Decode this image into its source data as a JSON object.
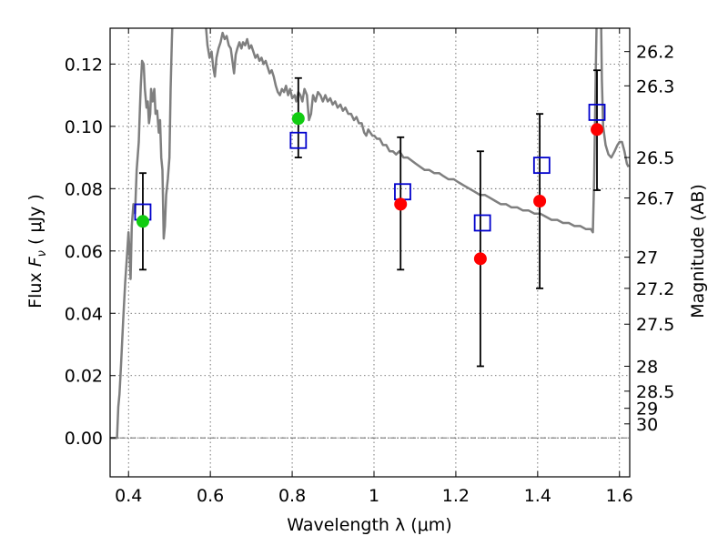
{
  "chart_data": {
    "type": "scatter",
    "xlabel": "Wavelength  λ (μm)",
    "ylabel": "Flux  F_ν  ( μJy )",
    "ylabel_parts": {
      "pre": "Flux  ",
      "symbol": "F",
      "subscript": "ν",
      "post": "  ( μJy )"
    },
    "y2label": "Magnitude (AB)",
    "xlim": [
      0.355,
      1.625
    ],
    "ylim": [
      -0.0125,
      0.1315
    ],
    "grid": true,
    "xticks": [
      {
        "value": 0.4,
        "label": "0.4"
      },
      {
        "value": 0.6,
        "label": "0.6"
      },
      {
        "value": 0.8,
        "label": "0.8"
      },
      {
        "value": 1.0,
        "label": "1"
      },
      {
        "value": 1.2,
        "label": "1.2"
      },
      {
        "value": 1.4,
        "label": "1.4"
      },
      {
        "value": 1.6,
        "label": "1.6"
      }
    ],
    "yticks": [
      {
        "value": 0.0,
        "label": "0.00"
      },
      {
        "value": 0.02,
        "label": "0.02"
      },
      {
        "value": 0.04,
        "label": "0.04"
      },
      {
        "value": 0.06,
        "label": "0.06"
      },
      {
        "value": 0.08,
        "label": "0.08"
      },
      {
        "value": 0.1,
        "label": "0.10"
      },
      {
        "value": 0.12,
        "label": "0.12"
      }
    ],
    "magticks": [
      {
        "value": 0.124,
        "label": "26.2"
      },
      {
        "value": 0.113,
        "label": "26.3"
      },
      {
        "value": 0.09,
        "label": "26.5"
      },
      {
        "value": 0.077,
        "label": "26.7"
      },
      {
        "value": 0.058,
        "label": "27"
      },
      {
        "value": 0.048,
        "label": "27.2"
      },
      {
        "value": 0.0365,
        "label": "27.5"
      },
      {
        "value": 0.023,
        "label": "28"
      },
      {
        "value": 0.015,
        "label": "28.5"
      },
      {
        "value": 0.0095,
        "label": "29"
      },
      {
        "value": 0.0045,
        "label": "30"
      }
    ],
    "model_spectrum": {
      "color": "#7f7f7f",
      "points": [
        [
          0.355,
          0.0
        ],
        [
          0.37,
          0.0
        ],
        [
          0.372,
          0.0
        ],
        [
          0.375,
          0.01
        ],
        [
          0.378,
          0.014
        ],
        [
          0.382,
          0.024
        ],
        [
          0.387,
          0.038
        ],
        [
          0.392,
          0.05
        ],
        [
          0.397,
          0.06
        ],
        [
          0.4,
          0.066
        ],
        [
          0.403,
          0.058
        ],
        [
          0.405,
          0.051
        ],
        [
          0.408,
          0.068
        ],
        [
          0.412,
          0.075
        ],
        [
          0.416,
          0.072
        ],
        [
          0.42,
          0.086
        ],
        [
          0.425,
          0.095
        ],
        [
          0.428,
          0.106
        ],
        [
          0.43,
          0.113
        ],
        [
          0.433,
          0.121
        ],
        [
          0.437,
          0.12
        ],
        [
          0.44,
          0.112
        ],
        [
          0.444,
          0.106
        ],
        [
          0.447,
          0.108
        ],
        [
          0.45,
          0.101
        ],
        [
          0.453,
          0.104
        ],
        [
          0.455,
          0.112
        ],
        [
          0.459,
          0.108
        ],
        [
          0.463,
          0.112
        ],
        [
          0.466,
          0.104
        ],
        [
          0.47,
          0.105
        ],
        [
          0.474,
          0.098
        ],
        [
          0.477,
          0.102
        ],
        [
          0.48,
          0.09
        ],
        [
          0.483,
          0.086
        ],
        [
          0.486,
          0.064
        ],
        [
          0.489,
          0.068
        ],
        [
          0.492,
          0.078
        ],
        [
          0.496,
          0.083
        ],
        [
          0.5,
          0.09
        ],
        [
          0.503,
          0.112
        ],
        [
          0.506,
          0.128
        ],
        [
          0.509,
          0.14
        ],
        [
          0.515,
          0.14
        ],
        [
          0.52,
          0.14
        ],
        [
          0.528,
          0.135
        ],
        [
          0.536,
          0.14
        ],
        [
          0.545,
          0.137
        ],
        [
          0.553,
          0.141
        ],
        [
          0.56,
          0.136
        ],
        [
          0.568,
          0.132
        ],
        [
          0.575,
          0.14
        ],
        [
          0.58,
          0.134
        ],
        [
          0.586,
          0.137
        ],
        [
          0.593,
          0.126
        ],
        [
          0.598,
          0.122
        ],
        [
          0.603,
          0.124
        ],
        [
          0.607,
          0.119
        ],
        [
          0.611,
          0.116
        ],
        [
          0.615,
          0.122
        ],
        [
          0.62,
          0.125
        ],
        [
          0.625,
          0.127
        ],
        [
          0.63,
          0.13
        ],
        [
          0.635,
          0.128
        ],
        [
          0.64,
          0.129
        ],
        [
          0.645,
          0.126
        ],
        [
          0.65,
          0.125
        ],
        [
          0.654,
          0.121
        ],
        [
          0.658,
          0.117
        ],
        [
          0.662,
          0.123
        ],
        [
          0.666,
          0.125
        ],
        [
          0.671,
          0.127
        ],
        [
          0.676,
          0.125
        ],
        [
          0.68,
          0.127
        ],
        [
          0.685,
          0.126
        ],
        [
          0.69,
          0.128
        ],
        [
          0.695,
          0.125
        ],
        [
          0.7,
          0.126
        ],
        [
          0.705,
          0.124
        ],
        [
          0.71,
          0.122
        ],
        [
          0.715,
          0.123
        ],
        [
          0.72,
          0.121
        ],
        [
          0.725,
          0.122
        ],
        [
          0.73,
          0.12
        ],
        [
          0.735,
          0.121
        ],
        [
          0.74,
          0.119
        ],
        [
          0.745,
          0.117
        ],
        [
          0.75,
          0.118
        ],
        [
          0.755,
          0.116
        ],
        [
          0.76,
          0.113
        ],
        [
          0.765,
          0.111
        ],
        [
          0.77,
          0.11
        ],
        [
          0.775,
          0.112
        ],
        [
          0.78,
          0.111
        ],
        [
          0.785,
          0.113
        ],
        [
          0.79,
          0.11
        ],
        [
          0.795,
          0.112
        ],
        [
          0.8,
          0.109
        ],
        [
          0.806,
          0.11
        ],
        [
          0.81,
          0.108
        ],
        [
          0.815,
          0.111
        ],
        [
          0.82,
          0.11
        ],
        [
          0.825,
          0.108
        ],
        [
          0.83,
          0.112
        ],
        [
          0.836,
          0.11
        ],
        [
          0.841,
          0.102
        ],
        [
          0.846,
          0.104
        ],
        [
          0.851,
          0.11
        ],
        [
          0.857,
          0.108
        ],
        [
          0.863,
          0.111
        ],
        [
          0.869,
          0.11
        ],
        [
          0.875,
          0.108
        ],
        [
          0.881,
          0.11
        ],
        [
          0.887,
          0.108
        ],
        [
          0.893,
          0.109
        ],
        [
          0.899,
          0.107
        ],
        [
          0.905,
          0.108
        ],
        [
          0.911,
          0.106
        ],
        [
          0.918,
          0.107
        ],
        [
          0.924,
          0.105
        ],
        [
          0.93,
          0.106
        ],
        [
          0.937,
          0.104
        ],
        [
          0.944,
          0.104
        ],
        [
          0.951,
          0.102
        ],
        [
          0.957,
          0.103
        ],
        [
          0.963,
          0.101
        ],
        [
          0.97,
          0.101
        ],
        [
          0.976,
          0.098
        ],
        [
          0.981,
          0.097
        ],
        [
          0.986,
          0.099
        ],
        [
          0.991,
          0.098
        ],
        [
          0.996,
          0.097
        ],
        [
          1.001,
          0.097
        ],
        [
          1.007,
          0.096
        ],
        [
          1.014,
          0.096
        ],
        [
          1.022,
          0.094
        ],
        [
          1.03,
          0.094
        ],
        [
          1.038,
          0.092
        ],
        [
          1.046,
          0.092
        ],
        [
          1.054,
          0.091
        ],
        [
          1.062,
          0.092
        ],
        [
          1.072,
          0.09
        ],
        [
          1.082,
          0.09
        ],
        [
          1.092,
          0.089
        ],
        [
          1.102,
          0.088
        ],
        [
          1.113,
          0.087
        ],
        [
          1.124,
          0.086
        ],
        [
          1.135,
          0.086
        ],
        [
          1.147,
          0.085
        ],
        [
          1.159,
          0.085
        ],
        [
          1.17,
          0.084
        ],
        [
          1.182,
          0.083
        ],
        [
          1.195,
          0.083
        ],
        [
          1.207,
          0.082
        ],
        [
          1.22,
          0.081
        ],
        [
          1.233,
          0.08
        ],
        [
          1.246,
          0.079
        ],
        [
          1.259,
          0.078
        ],
        [
          1.271,
          0.078
        ],
        [
          1.284,
          0.077
        ],
        [
          1.297,
          0.076
        ],
        [
          1.31,
          0.075
        ],
        [
          1.323,
          0.075
        ],
        [
          1.336,
          0.074
        ],
        [
          1.35,
          0.074
        ],
        [
          1.364,
          0.073
        ],
        [
          1.378,
          0.073
        ],
        [
          1.392,
          0.072
        ],
        [
          1.406,
          0.072
        ],
        [
          1.42,
          0.071
        ],
        [
          1.434,
          0.07
        ],
        [
          1.448,
          0.07
        ],
        [
          1.462,
          0.069
        ],
        [
          1.476,
          0.069
        ],
        [
          1.49,
          0.068
        ],
        [
          1.504,
          0.068
        ],
        [
          1.518,
          0.067
        ],
        [
          1.53,
          0.067
        ],
        [
          1.535,
          0.066
        ],
        [
          1.538,
          0.083
        ],
        [
          1.54,
          0.1
        ],
        [
          1.542,
          0.118
        ],
        [
          1.544,
          0.133
        ],
        [
          1.546,
          0.145
        ],
        [
          1.553,
          0.145
        ],
        [
          1.555,
          0.135
        ],
        [
          1.557,
          0.115
        ],
        [
          1.56,
          0.1
        ],
        [
          1.566,
          0.094
        ],
        [
          1.573,
          0.091
        ],
        [
          1.58,
          0.09
        ],
        [
          1.588,
          0.092
        ],
        [
          1.595,
          0.094
        ],
        [
          1.6,
          0.095
        ],
        [
          1.606,
          0.095
        ],
        [
          1.612,
          0.092
        ],
        [
          1.618,
          0.088
        ],
        [
          1.622,
          0.087
        ]
      ]
    },
    "model_points": {
      "marker": "open-square",
      "color": "#0000cc",
      "x": [
        0.435,
        0.815,
        1.07,
        1.265,
        1.41,
        1.545
      ],
      "y": [
        0.0725,
        0.0955,
        0.079,
        0.069,
        0.0875,
        0.1045
      ]
    },
    "detections": {
      "marker": "filled-circle",
      "color": "#11cc11",
      "x": [
        0.435,
        0.815
      ],
      "y": [
        0.0695,
        0.1025
      ],
      "yerr_low": [
        0.054,
        0.09
      ],
      "yerr_high": [
        0.085,
        0.1155
      ]
    },
    "upper_points": {
      "marker": "filled-circle",
      "color": "#ff0000",
      "x": [
        1.065,
        1.26,
        1.405,
        1.545
      ],
      "y": [
        0.075,
        0.0575,
        0.076,
        0.099
      ],
      "yerr_low": [
        0.054,
        0.023,
        0.048,
        0.0795
      ],
      "yerr_high": [
        0.0965,
        0.092,
        0.104,
        0.118
      ]
    }
  }
}
